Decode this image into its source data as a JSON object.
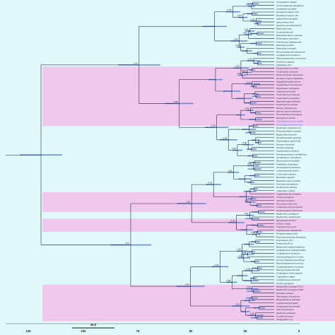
{
  "colors": {
    "background": "#dff8f8",
    "band": "#f0c8ee",
    "branch": "#1a1a2a",
    "hpd_bar": "#5b7fd0",
    "highlight_leaf": "#3a6fd6"
  },
  "taxa": [
    {
      "name": "Trachyaphea simplex"
    },
    {
      "name": "Scolecostigmina mangiferae"
    },
    {
      "name": "Zasmidium eucalypti"
    },
    {
      "name": "Pseudocercospora rubi"
    },
    {
      "name": "Pseudocercospora vitis"
    },
    {
      "name": "Sphaerulina myriadea"
    },
    {
      "name": "Sphaerulina citrus"
    },
    {
      "name": "Septoria cucurbitacearum"
    },
    {
      "name": "Ramularia ugni"
    },
    {
      "name": "Lecanosticta pini"
    },
    {
      "name": "Phaeophleospora eugeniae"
    },
    {
      "name": "Phloeospora maculans"
    },
    {
      "name": "Dothistroma septosporum"
    },
    {
      "name": "Ramularia pusilla"
    },
    {
      "name": "Ramularia eucalypti"
    },
    {
      "name": "Brunneosphaerella protearum"
    },
    {
      "name": "Cladosporium herbarum"
    },
    {
      "name": "Micronematobotrys verrucosus"
    },
    {
      "name": "Passalora vaginae"
    },
    {
      "name": "Zasmidium citri"
    },
    {
      "name": "Dissoconium aciculare"
    },
    {
      "name": "Uwebraunia commune"
    },
    {
      "name": "Ramichloridium apiculatum"
    },
    {
      "name": "Pseudoveronaea ellipsoidea"
    },
    {
      "name": "Zygophiala tardicrescens"
    },
    {
      "name": "Zygophiala wisconsinensis"
    },
    {
      "name": "Zygophiala cryptogama"
    },
    {
      "name": "Schizothyrium pomi"
    },
    {
      "name": "Chaetothyrina musarum"
    },
    {
      "name": "Chaetothyrina guttulata"
    },
    {
      "name": "Repetophragma inflatum"
    },
    {
      "name": "Exopassalora zambiae"
    },
    {
      "name": "Houjia yanglingensis"
    },
    {
      "name": "Spooneromyces helveticus"
    },
    {
      "name": "Neostrelitziana acaciigena"
    },
    {
      "name": "Neoseptoria caricis"
    },
    {
      "name": "Teratosphaeria alboconidia",
      "hl": true
    },
    {
      "name": "Teratosphaeria destructans",
      "hl": true
    },
    {
      "name": "Baudoinia compniacensis"
    },
    {
      "name": "Phaeothecoidea eucalypti"
    },
    {
      "name": "Readeriella mirabilis"
    },
    {
      "name": "Pseudotaeniolina globosa"
    },
    {
      "name": "Placoseptaria quercicola"
    },
    {
      "name": "Hortaea werneckii"
    },
    {
      "name": "Stenella araguata"
    },
    {
      "name": "Elasticomyces elasticus"
    },
    {
      "name": "Friedmanniomyces endolithicus"
    },
    {
      "name": "Acrodontium crateriforme"
    },
    {
      "name": "Recurvomyces mirabilis"
    },
    {
      "name": "Penidiella columbiana"
    },
    {
      "name": "Teratosphaeria fibrillosa"
    },
    {
      "name": "Catenulostroma abietis"
    },
    {
      "name": "Cystocoleus ebeneus"
    },
    {
      "name": "Racodium rupestre"
    },
    {
      "name": "Batcheloromyces proteae"
    },
    {
      "name": "Devriesia staurophora"
    },
    {
      "name": "Neodevriesia hilliana"
    },
    {
      "name": "Capnodium coffeae"
    },
    {
      "name": "Capnobotryella renispora"
    },
    {
      "name": "Scorias spongiosa"
    },
    {
      "name": "Xenomeris juniperi"
    },
    {
      "name": "Phaeotheca fissurella"
    },
    {
      "name": "Camarosporula persooniae"
    },
    {
      "name": "Neophaeotheca salicorniae"
    },
    {
      "name": "Readeriella nontingens"
    },
    {
      "name": "Readeriella callistemonis"
    },
    {
      "name": "Myriangium duriaei"
    },
    {
      "name": "Elsinoe veneta"
    },
    {
      "name": "Tripospermum myrti"
    },
    {
      "name": "Euantennaria rhododendri"
    },
    {
      "name": "Phragmocapnias betle"
    },
    {
      "name": "Phaeosaccardinula dennisiana"
    },
    {
      "name": "Polychaeton citri"
    },
    {
      "name": "Dennisiella ficus"
    },
    {
      "name": "Readeriella readeriellophora"
    },
    {
      "name": "Cladosporium cladosporioides"
    },
    {
      "name": "Cladosporium herbarum"
    },
    {
      "name": "Toxicocladosporium irritans"
    },
    {
      "name": "Verrucocladosporium dirinae"
    },
    {
      "name": "Rachicladosporium luculiae"
    },
    {
      "name": "Cladophialophora eucalypti"
    },
    {
      "name": "Microcyclosporella mali"
    },
    {
      "name": "Graphiopsis chlorocephala"
    },
    {
      "name": "Capnodium coffeae"
    },
    {
      "name": "Conidiocarpus siamensis"
    },
    {
      "name": "Scorias spongiosa"
    },
    {
      "name": "Readeriella eucalypti LNC3"
    },
    {
      "name": "Readeriella eucalypti LNA8"
    },
    {
      "name": "Dothidea sambuci"
    },
    {
      "name": "Myriangium hispanicum"
    },
    {
      "name": "Botryosphaeria dothidea"
    },
    {
      "name": "Lentithecium fluviatile"
    },
    {
      "name": "Aulographum glonioides"
    },
    {
      "name": "Asterina phenacis"
    },
    {
      "name": "Buelliella minimula"
    },
    {
      "name": "Lecidea fuscoatra"
    },
    {
      "name": "Aulographum sp."
    }
  ],
  "node_supports": [
    "1.00",
    "0.99",
    "1.00",
    "0.98",
    "1.00",
    "0.82",
    "1.00",
    "0.99",
    "0.91",
    "0.62",
    "1.00",
    "0.53",
    "1.00",
    "0.95",
    "0.99"
  ],
  "axis": {
    "ticks": [
      "125",
      "100",
      "75",
      "50",
      "25",
      "0"
    ],
    "scale_bar_label": "20.0"
  }
}
